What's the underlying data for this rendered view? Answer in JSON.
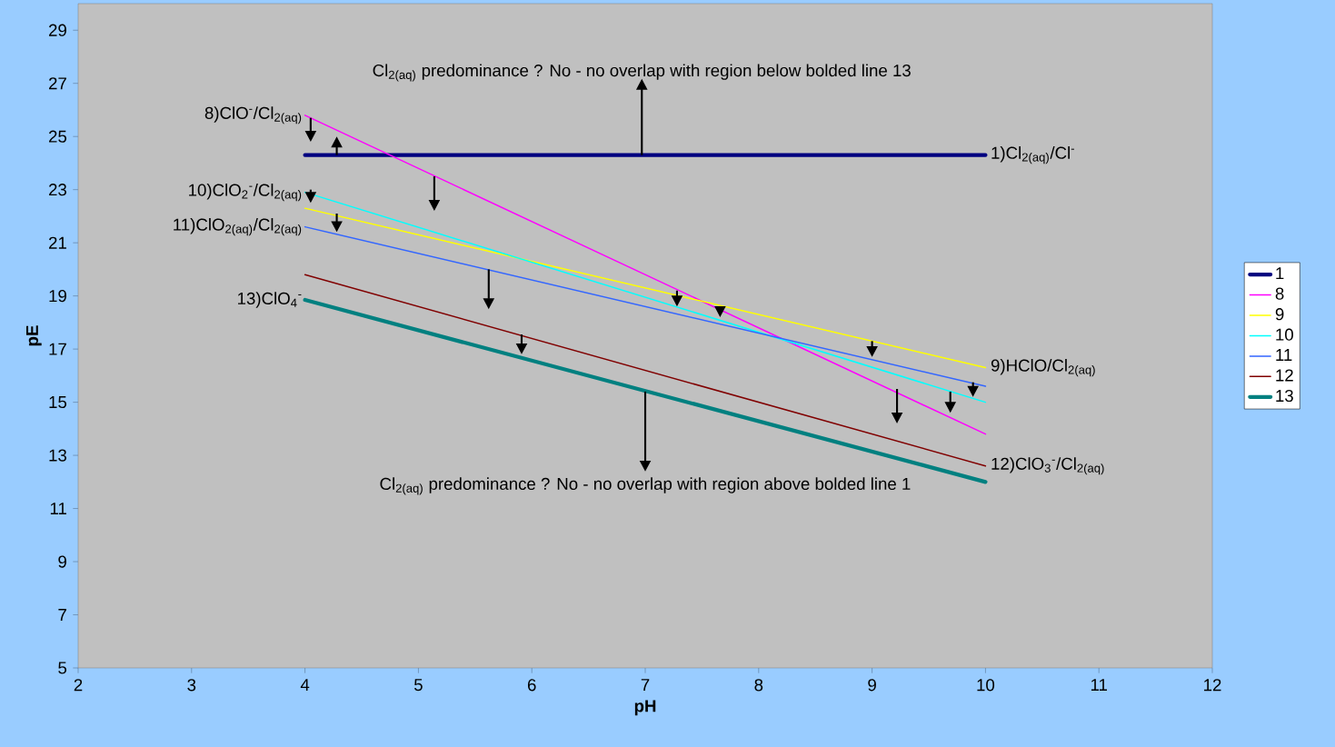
{
  "chart_data": {
    "type": "line",
    "xlabel": "pH",
    "ylabel": "pE",
    "xlim": [
      2,
      12
    ],
    "ylim": [
      5,
      30
    ],
    "xticks": [
      2,
      3,
      4,
      5,
      6,
      7,
      8,
      9,
      10,
      11,
      12
    ],
    "yticks": [
      5,
      7,
      9,
      11,
      13,
      15,
      17,
      19,
      21,
      23,
      25,
      27,
      29
    ],
    "x": [
      4,
      10
    ],
    "series": [
      {
        "name": "1",
        "color": "#000080",
        "values": [
          24.3,
          24.3
        ]
      },
      {
        "name": "8",
        "color": "#ff00ff",
        "values": [
          25.8,
          13.8
        ]
      },
      {
        "name": "9",
        "color": "#ffff00",
        "values": [
          22.3,
          16.3
        ]
      },
      {
        "name": "10",
        "color": "#00ffff",
        "values": [
          22.9,
          15.0
        ]
      },
      {
        "name": "11",
        "color": "#3366ff",
        "values": [
          21.6,
          15.6
        ]
      },
      {
        "name": "12",
        "color": "#800000",
        "values": [
          19.8,
          12.6
        ]
      },
      {
        "name": "13",
        "color": "#008080",
        "values": [
          18.85,
          12.0
        ]
      }
    ],
    "annotations": [
      {
        "text": "Cl$_{2(aq)}$ predominance ? No - no overlap with region below bolded line 13",
        "x": 6.97,
        "y": 24.3
      },
      {
        "text": "Cl$_{2(aq)}$ predominance ? No - no overlap with region above bolded line 1",
        "x": 7.0,
        "y": 15.4
      },
      {
        "text": "1)Cl$_{2(aq)}$/Cl$^{-}$",
        "x": 10,
        "y": 24.3
      },
      {
        "text": "8)ClO$^{-}$/Cl$_{2(aq)}$",
        "x": 4,
        "y": 25.8
      },
      {
        "text": "10)ClO$_{2}$$^{-}$/Cl$_{2(aq)}$",
        "x": 4,
        "y": 22.9
      },
      {
        "text": "11)ClO$_{2(aq)}$/Cl$_{2(aq)}$",
        "x": 4,
        "y": 21.6
      },
      {
        "text": "13)ClO$_{4}$$^{-}$",
        "x": 4,
        "y": 18.85
      },
      {
        "text": "9)HClO/Cl$_{2(aq)}$",
        "x": 10,
        "y": 16.3
      },
      {
        "text": "12)ClO$_{3}$$^{-}$/Cl$_{2(aq)}$",
        "x": 10,
        "y": 12.6
      }
    ],
    "legend": "right",
    "grid": false,
    "marker": "none",
    "line_style": "solid"
  }
}
